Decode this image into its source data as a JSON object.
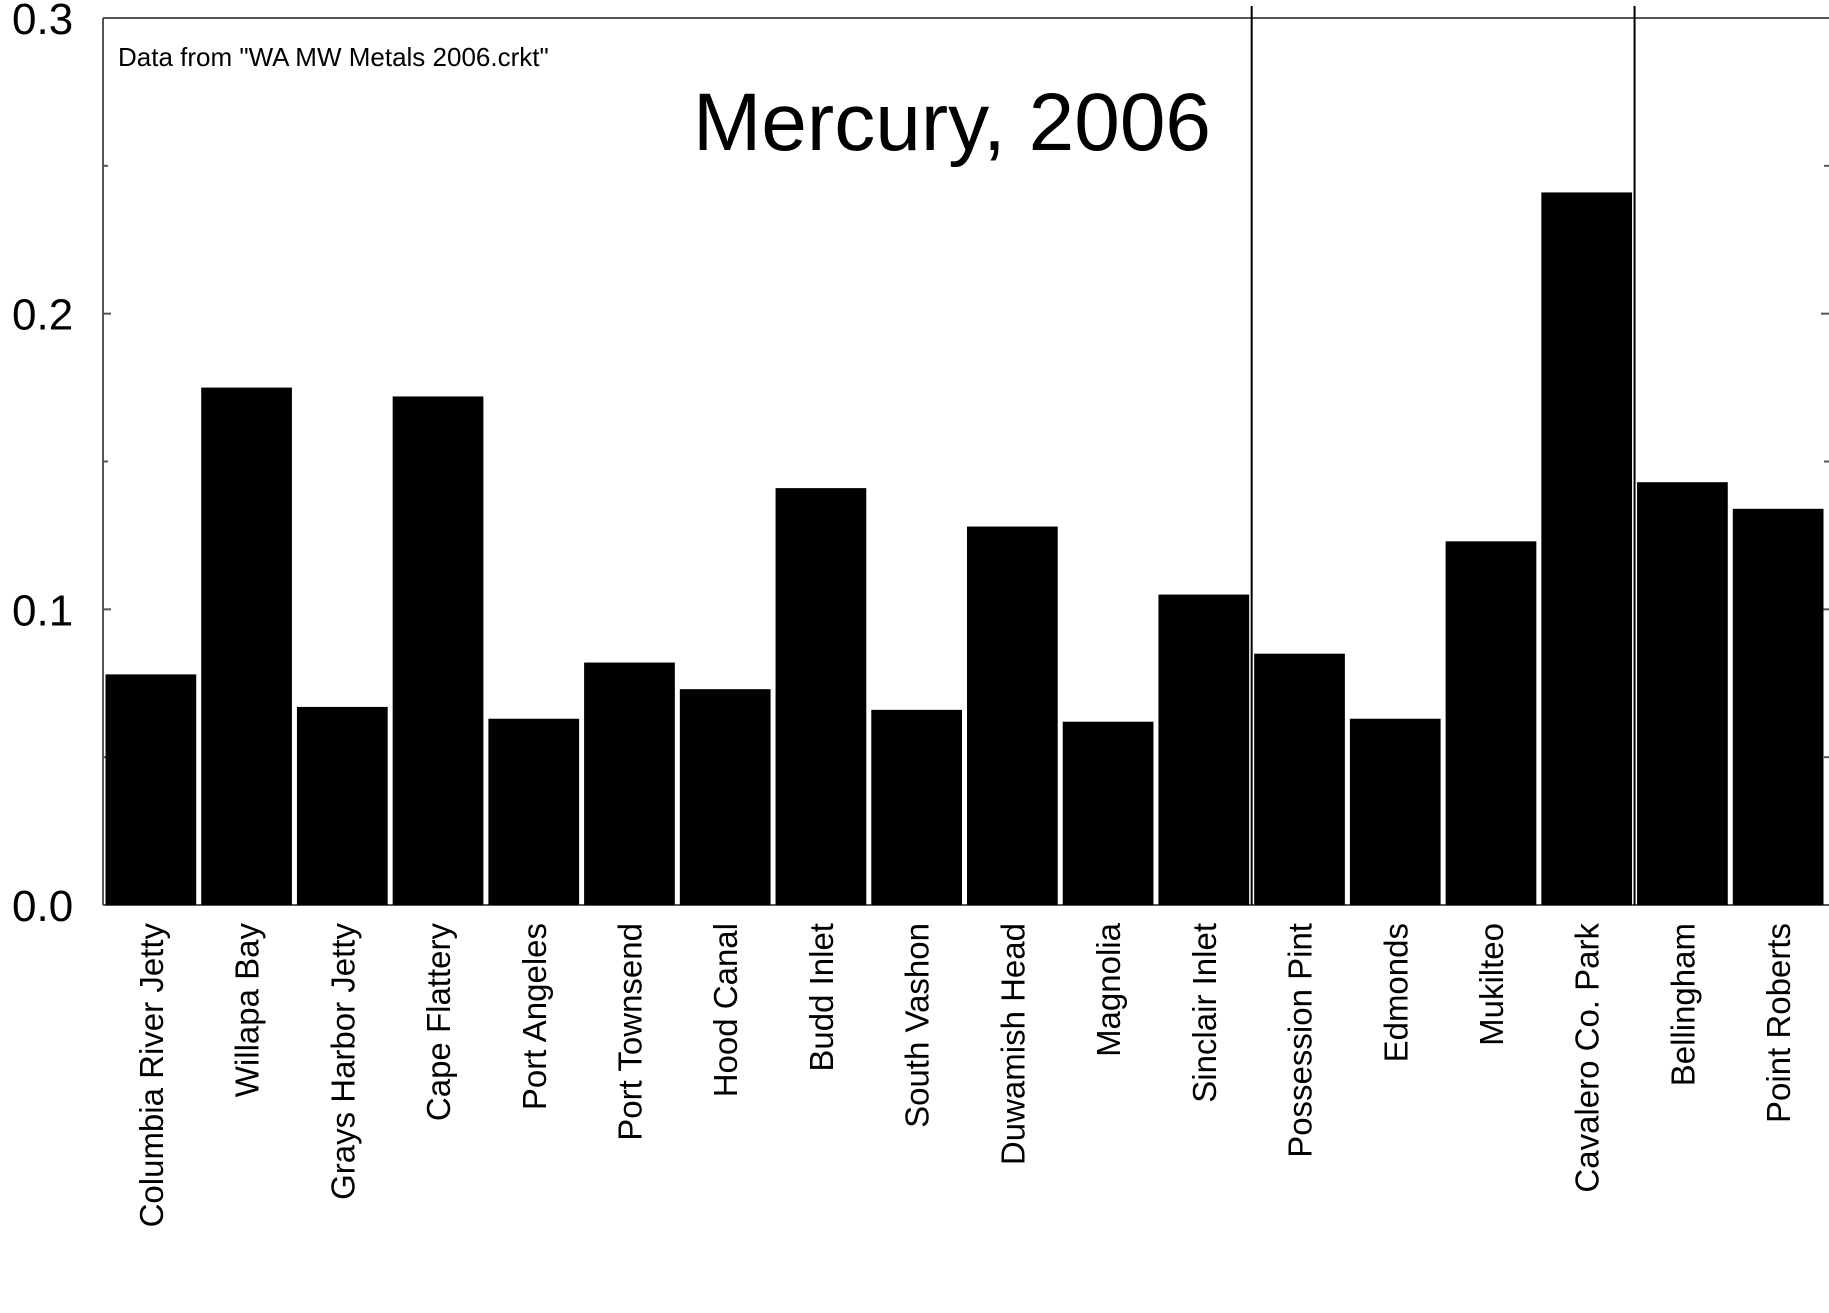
{
  "chart_data": {
    "type": "bar",
    "title": "Mercury, 2006",
    "note": "Data from \"WA MW Metals 2006.crkt\"",
    "xlabel": "",
    "ylabel": "",
    "ylim": [
      0,
      0.3
    ],
    "yticks": [
      {
        "value": 0.0,
        "label": "0.0"
      },
      {
        "value": 0.1,
        "label": "0.1"
      },
      {
        "value": 0.2,
        "label": "0.2"
      },
      {
        "value": 0.3,
        "label": "0.3"
      }
    ],
    "grid": false,
    "bar_color": "#000000",
    "categories": [
      "Columbia River Jetty",
      "Willapa Bay",
      "Grays Harbor Jetty",
      "Cape Flattery",
      "Port Angeles",
      "Port Townsend",
      "Hood Canal",
      "Budd Inlet",
      "South Vashon",
      "Duwamish Head",
      "Magnolia",
      "Sinclair Inlet",
      "Possession Pint",
      "Edmonds",
      "Mukilteo",
      "Cavalero Co. Park",
      "Bellingham",
      "Point Roberts"
    ],
    "values": [
      0.078,
      0.175,
      0.067,
      0.172,
      0.063,
      0.082,
      0.073,
      0.141,
      0.066,
      0.128,
      0.062,
      0.105,
      0.085,
      0.063,
      0.123,
      0.241,
      0.143,
      0.134
    ],
    "region_dividers_after": [
      "Sinclair Inlet",
      "Cavalero Co. Park"
    ]
  }
}
